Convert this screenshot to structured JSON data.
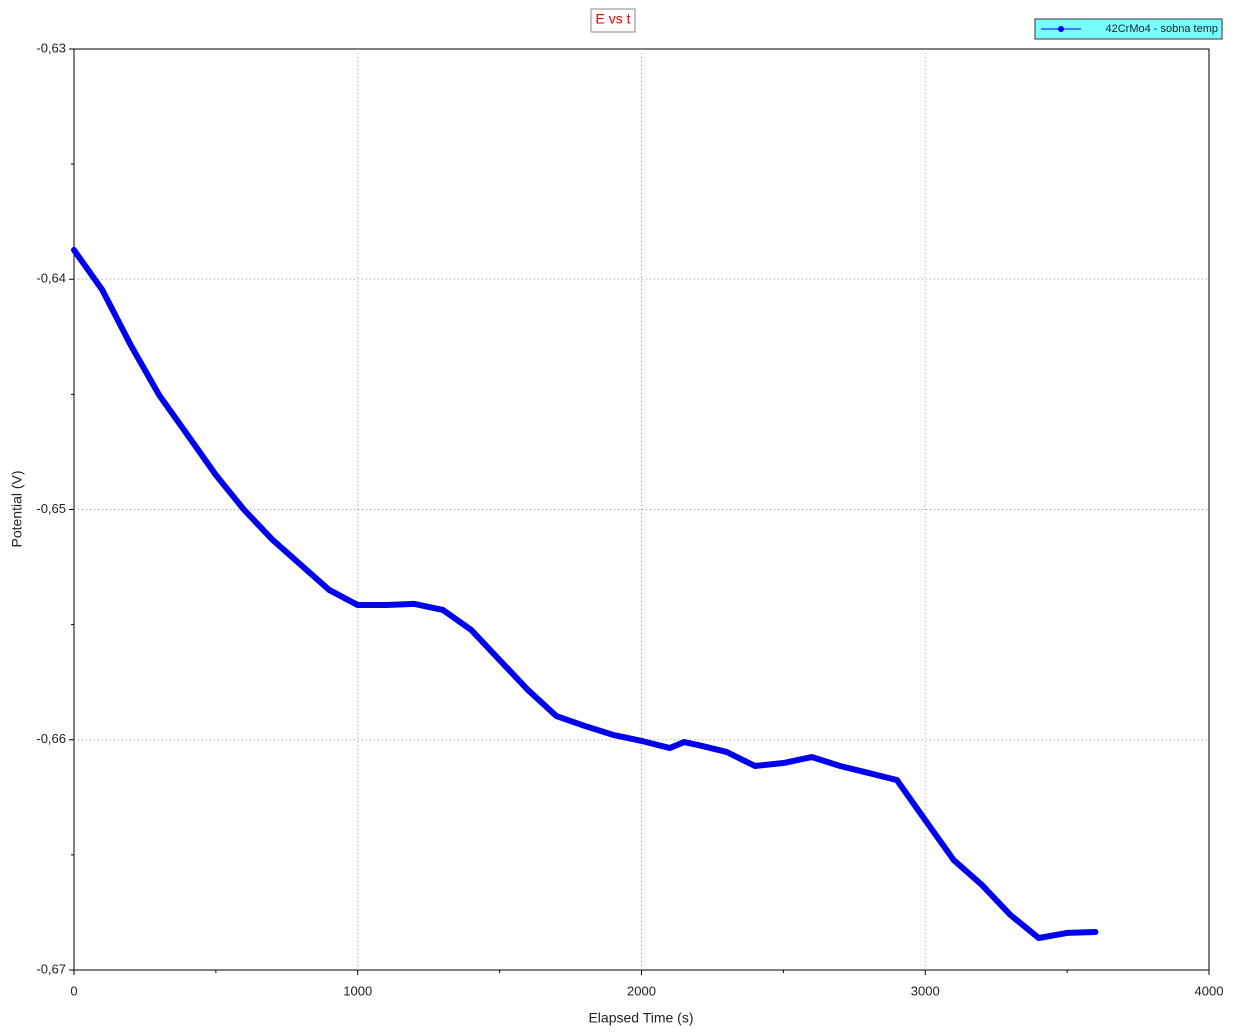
{
  "chart_data": {
    "type": "line",
    "title": "E vs t",
    "xlabel": "Elapsed Time (s)",
    "ylabel": "Potential (V)",
    "xlim": [
      0,
      4000
    ],
    "xticks": [
      0,
      1000,
      2000,
      3000,
      4000
    ],
    "ylim": [
      -0.67,
      -0.63
    ],
    "yticks": [
      {
        "value": -0.67,
        "label": "-0,67"
      },
      {
        "value": -0.66,
        "label": "-0,66"
      },
      {
        "value": -0.65,
        "label": "-0,65"
      },
      {
        "value": -0.64,
        "label": "-0,64"
      },
      {
        "value": -0.63,
        "label": "-0,63"
      }
    ],
    "grid": true,
    "legend": "upper right",
    "series": [
      {
        "name": "42CrMo4 - sobna temp",
        "color": "#0000ee",
        "x": [
          0,
          100,
          200,
          300,
          400,
          500,
          600,
          700,
          800,
          900,
          1000,
          1100,
          1200,
          1300,
          1400,
          1500,
          1600,
          1700,
          1800,
          1900,
          2000,
          2100,
          2150,
          2200,
          2300,
          2400,
          2500,
          2600,
          2700,
          2800,
          2900,
          3000,
          3100,
          3200,
          3300,
          3400,
          3500,
          3600
        ],
        "values": [
          -0.63873,
          -0.64047,
          -0.64286,
          -0.64503,
          -0.64676,
          -0.6485,
          -0.65002,
          -0.65132,
          -0.65241,
          -0.6535,
          -0.65415,
          -0.65415,
          -0.6541,
          -0.65436,
          -0.65523,
          -0.65654,
          -0.65784,
          -0.65897,
          -0.6594,
          -0.65979,
          -0.66005,
          -0.66036,
          -0.6601,
          -0.66023,
          -0.66053,
          -0.66114,
          -0.66101,
          -0.66075,
          -0.66114,
          -0.66144,
          -0.66175,
          -0.66349,
          -0.66522,
          -0.66631,
          -0.66761,
          -0.66861,
          -0.66839,
          -0.66835
        ]
      }
    ]
  }
}
